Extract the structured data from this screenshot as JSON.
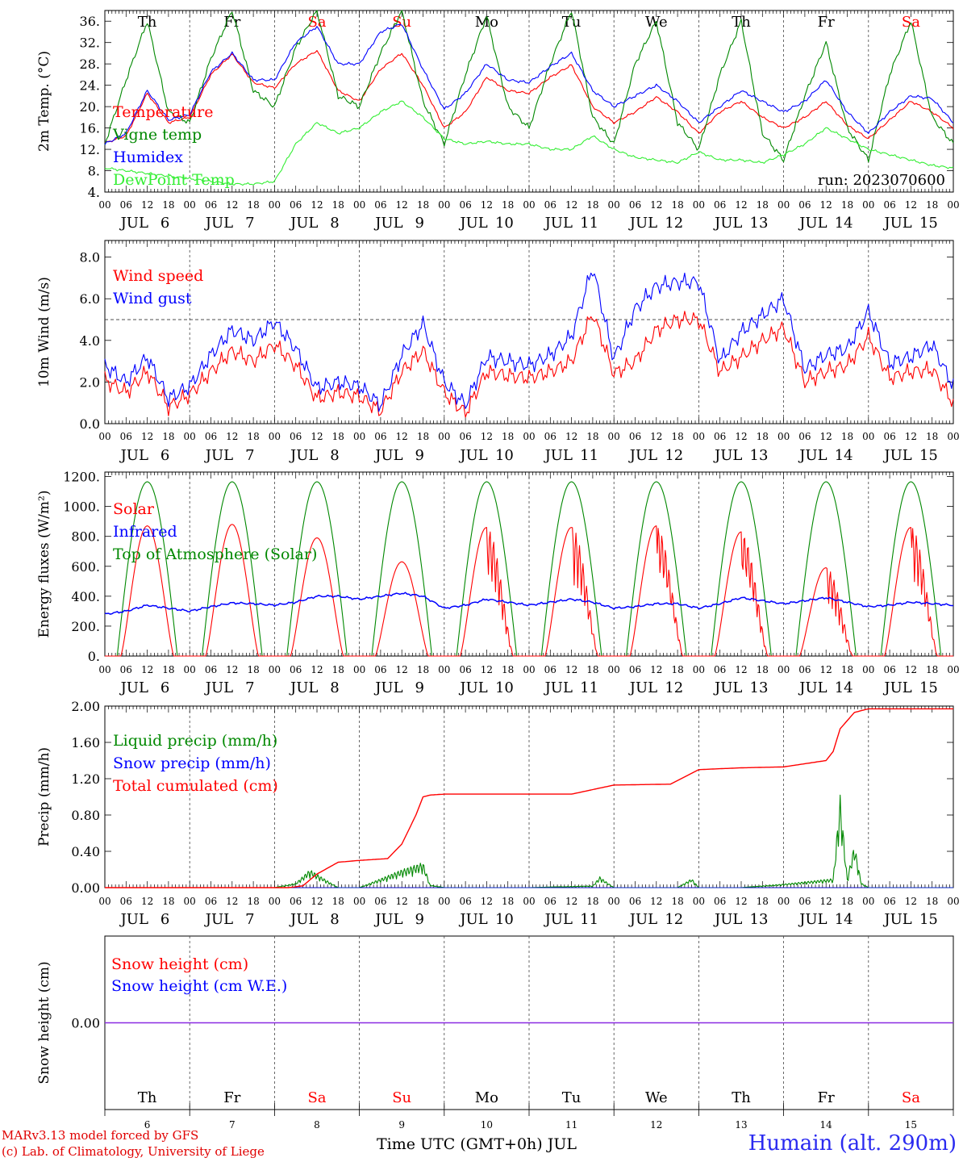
{
  "colors": {
    "temperature": "#ff0000",
    "vigne": "#008800",
    "humidex": "#0000ff",
    "dewpoint": "#33ee33",
    "solar": "#ff0000",
    "infrared": "#0000ff",
    "toa": "#008800",
    "liquid": "#008800",
    "snow": "#0000ff",
    "cumulated": "#ff0000",
    "snowheight_cm": "#ff0000",
    "snowheight_we": "#0000ff",
    "weekend": "#ff0000",
    "weekday": "#000000"
  },
  "days": [
    {
      "abbr": "Th",
      "date": "6",
      "weekend": false
    },
    {
      "abbr": "Fr",
      "date": "7",
      "weekend": false
    },
    {
      "abbr": "Sa",
      "date": "8",
      "weekend": true
    },
    {
      "abbr": "Su",
      "date": "9",
      "weekend": true
    },
    {
      "abbr": "Mo",
      "date": "10",
      "weekend": false
    },
    {
      "abbr": "Tu",
      "date": "11",
      "weekend": false
    },
    {
      "abbr": "We",
      "date": "12",
      "weekend": false
    },
    {
      "abbr": "Th",
      "date": "13",
      "weekend": false
    },
    {
      "abbr": "Fr",
      "date": "14",
      "weekend": false
    },
    {
      "abbr": "Sa",
      "date": "15",
      "weekend": true
    }
  ],
  "month_label": "JUL",
  "hour_ticks": [
    "00",
    "06",
    "12",
    "18"
  ],
  "chart_data": [
    {
      "type": "line",
      "ylabel": "2m Temp. (°C)",
      "ylim": [
        4,
        38
      ],
      "yticks": [
        "4.",
        "8.",
        "12.",
        "16.",
        "20.",
        "24.",
        "28.",
        "32.",
        "36."
      ],
      "annotation": "run: 2023070600",
      "x_unit": "hours since JUL 6 00 UTC",
      "series": [
        {
          "name": "Temperature",
          "color_key": "temperature",
          "x": [
            0,
            6,
            12,
            18,
            24,
            30,
            36,
            42,
            48,
            54,
            60,
            66,
            72,
            78,
            84,
            90,
            96,
            102,
            108,
            114,
            120,
            126,
            132,
            138,
            144,
            150,
            156,
            162,
            168,
            174,
            180,
            186,
            192,
            198,
            204,
            210,
            216,
            222,
            228,
            234,
            240
          ],
          "y": [
            13.2,
            14.5,
            22.5,
            17.0,
            18.0,
            26.0,
            29.8,
            24.5,
            23.5,
            28.0,
            30.5,
            23.0,
            21.0,
            27.0,
            30.0,
            24.0,
            16.0,
            19.0,
            25.5,
            23.0,
            22.5,
            25.5,
            27.8,
            20.0,
            17.0,
            19.0,
            21.8,
            19.0,
            15.0,
            19.0,
            21.0,
            18.0,
            16.0,
            18.0,
            21.0,
            16.5,
            14.0,
            17.5,
            21.0,
            19.0,
            16.0
          ]
        },
        {
          "name": "Vigne temp",
          "color_key": "vigne",
          "x": [
            0,
            6,
            12,
            18,
            24,
            30,
            36,
            42,
            48,
            54,
            60,
            66,
            72,
            78,
            84,
            90,
            96,
            102,
            108,
            114,
            120,
            126,
            132,
            138,
            144,
            150,
            156,
            162,
            168,
            174,
            180,
            186,
            192,
            198,
            204,
            210,
            216,
            222,
            228,
            234,
            240
          ],
          "y": [
            13.0,
            25.0,
            36.0,
            19.0,
            17.0,
            29.0,
            38.0,
            23.0,
            20.0,
            31.0,
            38.0,
            22.0,
            20.0,
            30.0,
            38.0,
            21.0,
            13.0,
            26.0,
            37.0,
            20.0,
            16.0,
            28.0,
            38.0,
            18.0,
            13.0,
            28.0,
            36.0,
            17.0,
            12.0,
            26.0,
            36.0,
            15.0,
            10.0,
            22.0,
            32.0,
            16.0,
            10.0,
            26.0,
            36.0,
            18.0,
            13.0
          ]
        },
        {
          "name": "Humidex",
          "color_key": "humidex",
          "x": [
            0,
            6,
            12,
            18,
            24,
            30,
            36,
            42,
            48,
            54,
            60,
            66,
            72,
            78,
            84,
            90,
            96,
            102,
            108,
            114,
            120,
            126,
            132,
            138,
            144,
            150,
            156,
            162,
            168,
            174,
            180,
            186,
            192,
            198,
            204,
            210,
            216,
            222,
            228,
            234,
            240
          ],
          "y": [
            13.0,
            15.0,
            23.0,
            17.5,
            18.5,
            26.5,
            30.0,
            25.0,
            25.0,
            32.0,
            35.0,
            28.0,
            28.0,
            34.0,
            35.5,
            27.0,
            19.5,
            22.5,
            28.0,
            25.0,
            24.5,
            27.5,
            30.0,
            23.0,
            20.0,
            22.0,
            24.0,
            21.0,
            17.0,
            20.0,
            23.0,
            21.0,
            19.0,
            21.0,
            25.0,
            19.0,
            15.0,
            19.0,
            22.0,
            21.5,
            17.0
          ]
        },
        {
          "name": "DewPoint Temp",
          "color_key": "dewpoint",
          "x": [
            0,
            6,
            12,
            18,
            24,
            30,
            36,
            42,
            48,
            54,
            60,
            66,
            72,
            78,
            84,
            90,
            96,
            102,
            108,
            114,
            120,
            126,
            132,
            138,
            144,
            150,
            156,
            162,
            168,
            174,
            180,
            186,
            192,
            198,
            204,
            210,
            216,
            222,
            228,
            234,
            240
          ],
          "y": [
            8.5,
            8.0,
            7.5,
            7.0,
            6.5,
            6.0,
            5.5,
            5.5,
            6.0,
            13.0,
            17.0,
            15.0,
            16.0,
            19.0,
            21.0,
            18.0,
            14.0,
            13.0,
            13.5,
            13.0,
            13.0,
            12.0,
            12.0,
            14.5,
            12.0,
            10.5,
            10.0,
            9.5,
            11.5,
            10.0,
            10.0,
            9.5,
            11.0,
            13.0,
            16.0,
            14.0,
            12.0,
            11.0,
            10.0,
            9.0,
            8.5
          ]
        }
      ]
    },
    {
      "type": "line",
      "ylabel": "10m Wind (m/s)",
      "ylim": [
        0,
        8.8
      ],
      "yticks": [
        "0.0",
        "2.0",
        "4.0",
        "6.0",
        "8.0"
      ],
      "reference_line": 5.0,
      "x_unit": "hours since JUL 6 00 UTC",
      "series": [
        {
          "name": "Wind speed",
          "color_key": "temperature",
          "x": [
            0,
            6,
            12,
            18,
            24,
            30,
            36,
            42,
            48,
            54,
            60,
            66,
            72,
            78,
            84,
            90,
            96,
            102,
            108,
            114,
            120,
            126,
            132,
            138,
            144,
            150,
            156,
            162,
            168,
            174,
            180,
            186,
            192,
            198,
            204,
            210,
            216,
            222,
            228,
            234,
            240
          ],
          "y": [
            2.1,
            1.5,
            2.5,
            0.8,
            1.4,
            2.5,
            3.5,
            3.0,
            3.8,
            2.8,
            1.2,
            1.5,
            1.3,
            0.6,
            2.5,
            3.5,
            1.5,
            0.5,
            2.5,
            2.3,
            2.2,
            2.5,
            3.0,
            5.3,
            2.4,
            3.0,
            4.5,
            5.0,
            5.0,
            2.5,
            3.2,
            4.0,
            4.6,
            2.0,
            2.5,
            2.8,
            4.2,
            2.2,
            2.5,
            2.6,
            1.0
          ]
        },
        {
          "name": "Wind gust",
          "color_key": "humidex",
          "x": [
            0,
            6,
            12,
            18,
            24,
            30,
            36,
            42,
            48,
            54,
            60,
            66,
            72,
            78,
            84,
            90,
            96,
            102,
            108,
            114,
            120,
            126,
            132,
            138,
            144,
            150,
            156,
            162,
            168,
            174,
            180,
            186,
            192,
            198,
            204,
            210,
            216,
            222,
            228,
            234,
            240
          ],
          "y": [
            2.8,
            2.0,
            3.2,
            1.2,
            1.8,
            3.3,
            4.5,
            4.0,
            4.9,
            3.6,
            1.7,
            2.0,
            1.8,
            0.9,
            3.3,
            4.8,
            2.0,
            0.9,
            3.2,
            3.0,
            2.8,
            3.3,
            4.2,
            7.5,
            3.1,
            5.5,
            6.6,
            6.8,
            6.8,
            3.0,
            4.4,
            5.2,
            6.0,
            2.6,
            3.3,
            3.6,
            5.4,
            2.9,
            3.2,
            3.8,
            1.8
          ]
        }
      ]
    },
    {
      "type": "line",
      "ylabel": "Energy fluxes (W/m²)",
      "ylim": [
        0,
        1230
      ],
      "yticks": [
        "0.",
        "200.",
        "400.",
        "600.",
        "800.",
        "1000.",
        "1200."
      ],
      "x_unit": "hours since JUL 6 00 UTC",
      "series": [
        {
          "name": "Solar",
          "color_key": "solar",
          "daily_peak": [
            870,
            880,
            790,
            630,
            860,
            860,
            870,
            830,
            590,
            860
          ]
        },
        {
          "name": "Infrared",
          "color_key": "infrared",
          "x": [
            0,
            6,
            12,
            18,
            24,
            30,
            36,
            42,
            48,
            54,
            60,
            66,
            72,
            78,
            84,
            90,
            96,
            102,
            108,
            114,
            120,
            126,
            132,
            138,
            144,
            150,
            156,
            162,
            168,
            174,
            180,
            186,
            192,
            198,
            204,
            210,
            216,
            222,
            228,
            234,
            240
          ],
          "y": [
            280,
            300,
            340,
            320,
            300,
            330,
            355,
            350,
            340,
            360,
            400,
            400,
            380,
            400,
            420,
            400,
            320,
            340,
            380,
            360,
            340,
            360,
            380,
            360,
            320,
            330,
            350,
            350,
            320,
            350,
            390,
            370,
            350,
            370,
            390,
            360,
            330,
            340,
            360,
            350,
            340
          ]
        },
        {
          "name": "Top of Atmosphere (Solar)",
          "color_key": "toa",
          "daily_peak": [
            1165,
            1165,
            1165,
            1165,
            1165,
            1165,
            1165,
            1165,
            1165,
            1165
          ]
        }
      ]
    },
    {
      "type": "line",
      "ylabel": "Precip (mm/h)",
      "ylim": [
        0,
        2.0
      ],
      "yticks": [
        "0.00",
        "0.40",
        "0.80",
        "1.20",
        "1.60",
        "2.00"
      ],
      "x_unit": "hours since JUL 6 00 UTC",
      "series": [
        {
          "name": "Liquid precip (mm/h)",
          "color_key": "liquid",
          "x": [
            0,
            48,
            54,
            58,
            60,
            64,
            66,
            72,
            78,
            84,
            90,
            92,
            96,
            120,
            138,
            140,
            144,
            162,
            166,
            168,
            180,
            192,
            206,
            208,
            210,
            212,
            214,
            216,
            240
          ],
          "y": [
            0,
            0,
            0.05,
            0.2,
            0.15,
            0.05,
            0,
            0,
            0.1,
            0.2,
            0.28,
            0.03,
            0,
            0,
            0.02,
            0.12,
            0,
            0,
            0.1,
            0,
            0,
            0.04,
            0.1,
            1.02,
            0.1,
            0.48,
            0.05,
            0,
            0
          ]
        },
        {
          "name": "Snow precip (mm/h)",
          "color_key": "snow",
          "x": [
            0,
            240
          ],
          "y": [
            0,
            0
          ]
        },
        {
          "name": "Total cumulated (cm)",
          "color_key": "cumulated",
          "x": [
            0,
            52,
            56,
            60,
            66,
            72,
            80,
            84,
            88,
            90,
            92,
            96,
            132,
            138,
            144,
            160,
            168,
            180,
            192,
            204,
            206,
            208,
            212,
            216,
            240
          ],
          "y": [
            0,
            0,
            0.02,
            0.15,
            0.28,
            0.3,
            0.32,
            0.48,
            0.8,
            1.0,
            1.02,
            1.03,
            1.03,
            1.08,
            1.13,
            1.14,
            1.3,
            1.32,
            1.33,
            1.4,
            1.5,
            1.75,
            1.93,
            1.97,
            1.97
          ]
        }
      ]
    },
    {
      "type": "line",
      "ylabel": "Snow height (cm)",
      "ylim": [
        -1,
        1
      ],
      "yticks": [
        "0.00"
      ],
      "x_unit": "hours since JUL 6 00 UTC",
      "series": [
        {
          "name": "Snow height (cm)",
          "color_key": "snowheight_cm",
          "x": [
            0,
            240
          ],
          "y": [
            0,
            0
          ]
        },
        {
          "name": "Snow height (cm W.E.)",
          "color_key": "snowheight_we",
          "x": [
            0,
            240
          ],
          "y": [
            0,
            0
          ]
        }
      ]
    }
  ],
  "xlabel": "Time UTC (GMT+0h) JUL",
  "footer": {
    "model": "MARv3.13 model forced by GFS",
    "copyright": "(c) Lab. of Climatology, University of Liege",
    "station": "Humain (alt. 290m)"
  }
}
